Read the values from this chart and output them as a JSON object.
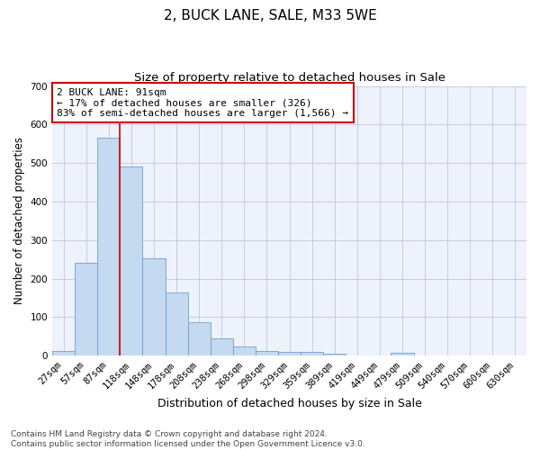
{
  "title": "2, BUCK LANE, SALE, M33 5WE",
  "subtitle": "Size of property relative to detached houses in Sale",
  "xlabel": "Distribution of detached houses by size in Sale",
  "ylabel": "Number of detached properties",
  "categories": [
    "27sqm",
    "57sqm",
    "87sqm",
    "118sqm",
    "148sqm",
    "178sqm",
    "208sqm",
    "238sqm",
    "268sqm",
    "298sqm",
    "329sqm",
    "359sqm",
    "389sqm",
    "419sqm",
    "449sqm",
    "479sqm",
    "509sqm",
    "540sqm",
    "570sqm",
    "600sqm",
    "630sqm"
  ],
  "values": [
    12,
    240,
    565,
    490,
    253,
    165,
    88,
    46,
    25,
    12,
    9,
    9,
    5,
    0,
    0,
    7,
    0,
    0,
    0,
    0,
    0
  ],
  "bar_color": "#c5d9f0",
  "bar_edge_color": "#6ea0cc",
  "vline_x": 2.5,
  "vline_color": "#cc0000",
  "annotation_text": "2 BUCK LANE: 91sqm\n← 17% of detached houses are smaller (326)\n83% of semi-detached houses are larger (1,566) →",
  "annotation_box_color": "#ffffff",
  "annotation_box_edge_color": "#cc0000",
  "ylim": [
    0,
    700
  ],
  "yticks": [
    0,
    100,
    200,
    300,
    400,
    500,
    600,
    700
  ],
  "bg_color": "#eef2fb",
  "grid_color": "#c0c8e0",
  "footer_text": "Contains HM Land Registry data © Crown copyright and database right 2024.\nContains public sector information licensed under the Open Government Licence v3.0.",
  "title_fontsize": 11,
  "subtitle_fontsize": 9.5,
  "xlabel_fontsize": 9,
  "ylabel_fontsize": 8.5,
  "tick_fontsize": 7.5,
  "footer_fontsize": 6.5,
  "annotation_fontsize": 8
}
